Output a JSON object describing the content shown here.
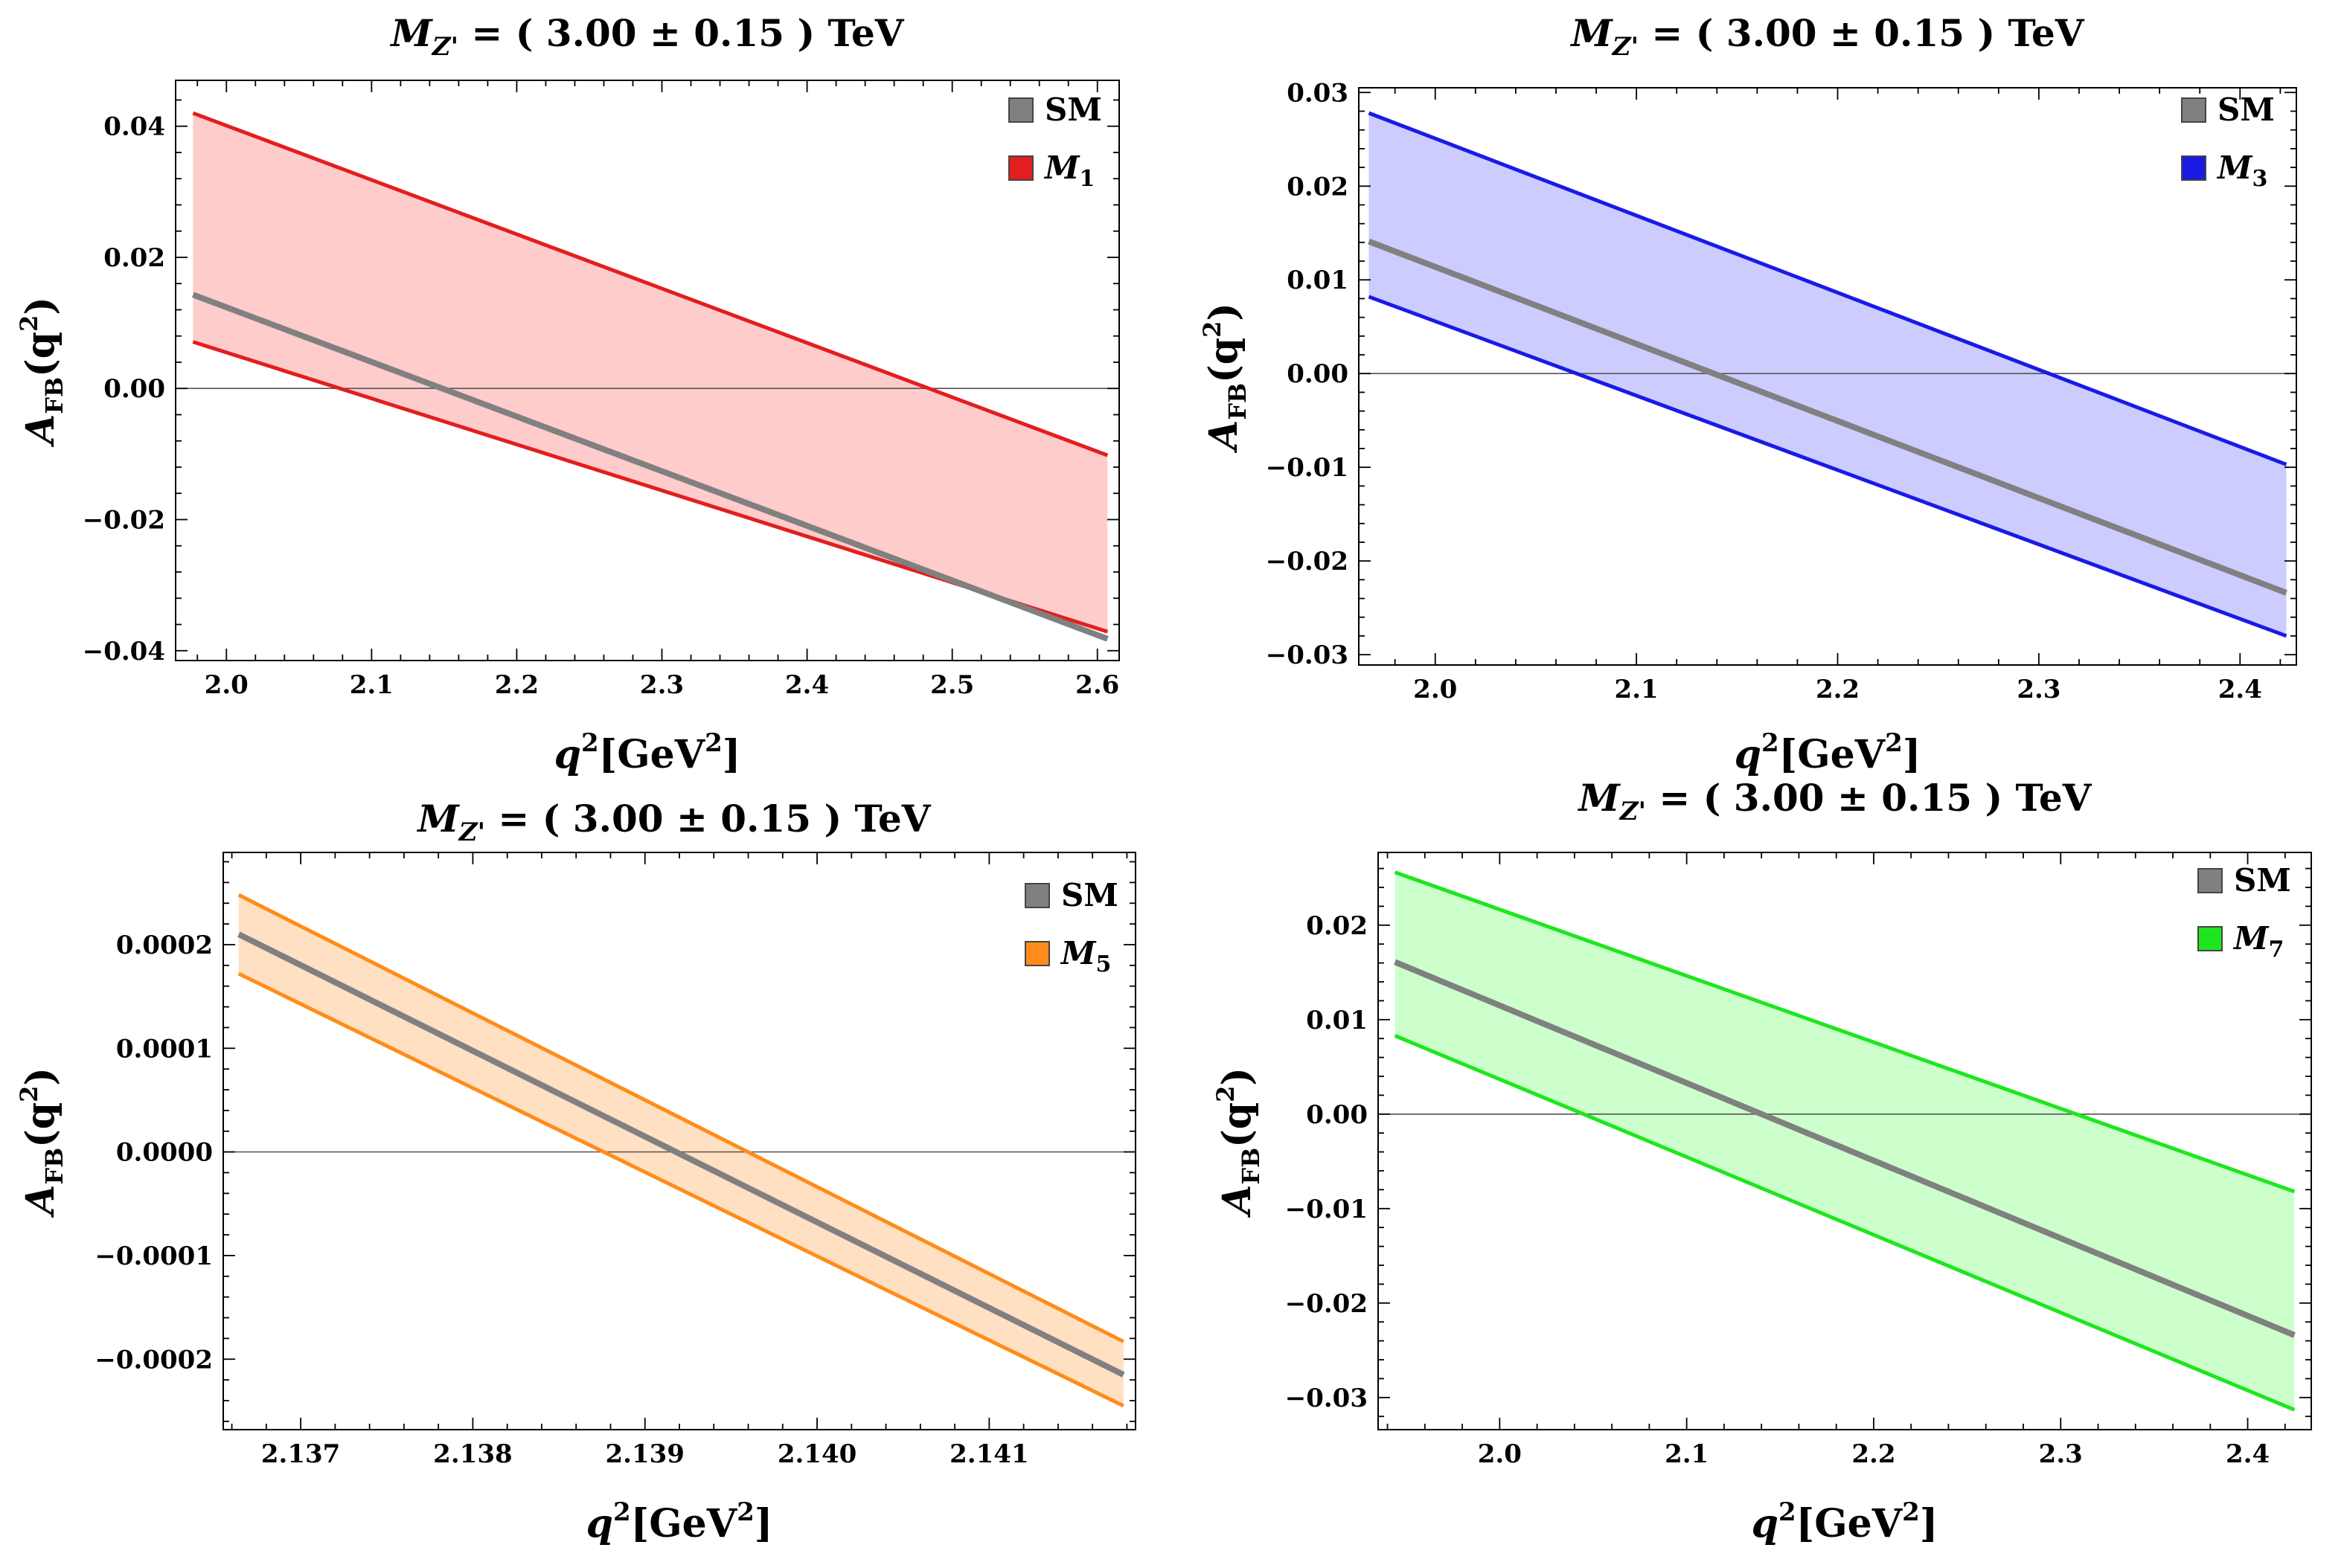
{
  "chart_data": [
    {
      "type": "area",
      "title": {
        "main": "M",
        "sub": "Z'",
        "rest": " = ( 3.00 ± 0.15 ) TeV"
      },
      "xlabel": {
        "main": "q",
        "sup": "2",
        "rest": "[GeV",
        "sup2": "2",
        "end": "]"
      },
      "ylabel": {
        "main": "A",
        "sub": "FB",
        "rest": "(q",
        "sup": "2",
        "end": ")"
      },
      "xlim": [
        1.965,
        2.615
      ],
      "ylim": [
        -0.0415,
        0.047
      ],
      "xticks": [
        2.0,
        2.1,
        2.2,
        2.3,
        2.4,
        2.5,
        2.6
      ],
      "xtick_labels": [
        "2.0",
        "2.1",
        "2.2",
        "2.3",
        "2.4",
        "2.5",
        "2.6"
      ],
      "yticks": [
        -0.04,
        -0.02,
        0.0,
        0.02,
        0.04
      ],
      "ytick_labels": [
        "−0.04",
        "−0.02",
        "0.00",
        "0.02",
        "0.04"
      ],
      "x_range": [
        1.977,
        2.607
      ],
      "upper": [
        0.042,
        -0.0102
      ],
      "lower": [
        0.0071,
        -0.0371
      ],
      "sm": [
        0.0143,
        -0.0382
      ],
      "color": "#e31e1e",
      "fill": "#ffcccc",
      "legend": [
        {
          "label": "SM",
          "color": "#808080"
        },
        {
          "label": "M",
          "sub": "1",
          "color": "#e31e1e"
        }
      ]
    },
    {
      "type": "area",
      "title": {
        "main": "M",
        "sub": "Z'",
        "rest": " = ( 3.00 ± 0.15 ) TeV"
      },
      "xlabel": {
        "main": "q",
        "sup": "2",
        "rest": "[GeV",
        "sup2": "2",
        "end": "]"
      },
      "ylabel": {
        "main": "A",
        "sub": "FB",
        "rest": "(q",
        "sup": "2",
        "end": ")"
      },
      "xlim": [
        1.962,
        2.428
      ],
      "ylim": [
        -0.0311,
        0.0305
      ],
      "xticks": [
        2.0,
        2.1,
        2.2,
        2.3,
        2.4
      ],
      "xtick_labels": [
        "2.0",
        "2.1",
        "2.2",
        "2.3",
        "2.4"
      ],
      "yticks": [
        -0.03,
        -0.02,
        -0.01,
        0.0,
        0.01,
        0.02,
        0.03
      ],
      "ytick_labels": [
        "−0.03",
        "−0.02",
        "−0.01",
        "0.00",
        "0.01",
        "0.02",
        "0.03"
      ],
      "x_range": [
        1.967,
        2.423
      ],
      "upper": [
        0.0278,
        -0.0097
      ],
      "lower": [
        0.0082,
        -0.028
      ],
      "sm": [
        0.0141,
        -0.0234
      ],
      "color": "#1a1ae6",
      "fill": "#ccccff",
      "legend": [
        {
          "label": "SM",
          "color": "#808080"
        },
        {
          "label": "M",
          "sub": "3",
          "color": "#1a1ae6"
        }
      ]
    },
    {
      "type": "area",
      "title": {
        "main": "M",
        "sub": "Z'",
        "rest": " = ( 3.00 ± 0.15 ) TeV"
      },
      "xlabel": {
        "main": "q",
        "sup": "2",
        "rest": "[GeV",
        "sup2": "2",
        "end": "]"
      },
      "ylabel": {
        "main": "A",
        "sub": "FB",
        "rest": "(q",
        "sup": "2",
        "end": ")"
      },
      "xlim": [
        2.13655,
        2.14185
      ],
      "ylim": [
        -0.000268,
        0.000289
      ],
      "xticks": [
        2.137,
        2.138,
        2.139,
        2.14,
        2.141
      ],
      "xtick_labels": [
        "2.137",
        "2.138",
        "2.139",
        "2.140",
        "2.141"
      ],
      "yticks": [
        -0.0002,
        -0.0001,
        0.0,
        0.0001,
        0.0002
      ],
      "ytick_labels": [
        "−0.0002",
        "−0.0001",
        "0.0000",
        "0.0001",
        "0.0002"
      ],
      "x_range": [
        2.13664,
        2.14178
      ],
      "upper": [
        0.000248,
        -0.000183
      ],
      "lower": [
        0.000172,
        -0.000245
      ],
      "sm": [
        0.00021,
        -0.000215
      ],
      "color": "#ff8c1a",
      "fill": "#ffe0c2",
      "legend": [
        {
          "label": "SM",
          "color": "#808080"
        },
        {
          "label": "M",
          "sub": "5",
          "color": "#ff8c1a"
        }
      ]
    },
    {
      "type": "area",
      "title": {
        "main": "M",
        "sub": "Z'",
        "rest": " = ( 3.00 ± 0.15 ) TeV"
      },
      "xlabel": {
        "main": "q",
        "sup": "2",
        "rest": "[GeV",
        "sup2": "2",
        "end": "]"
      },
      "ylabel": {
        "main": "A",
        "sub": "FB",
        "rest": "(q",
        "sup": "2",
        "end": ")"
      },
      "xlim": [
        1.935,
        2.434
      ],
      "ylim": [
        -0.0334,
        0.0277
      ],
      "xticks": [
        2.0,
        2.1,
        2.2,
        2.3,
        2.4
      ],
      "xtick_labels": [
        "2.0",
        "2.1",
        "2.2",
        "2.3",
        "2.4"
      ],
      "yticks": [
        -0.03,
        -0.02,
        -0.01,
        0.0,
        0.01,
        0.02
      ],
      "ytick_labels": [
        "−0.03",
        "−0.02",
        "−0.01",
        "0.00",
        "0.01",
        "0.02"
      ],
      "x_range": [
        1.944,
        2.425
      ],
      "upper": [
        0.0256,
        -0.0082
      ],
      "lower": [
        0.0083,
        -0.0313
      ],
      "sm": [
        0.0161,
        -0.0234
      ],
      "color": "#1ee61e",
      "fill": "#ccffcc",
      "legend": [
        {
          "label": "SM",
          "color": "#808080"
        },
        {
          "label": "M",
          "sub": "7",
          "color": "#1ee61e"
        }
      ]
    }
  ]
}
